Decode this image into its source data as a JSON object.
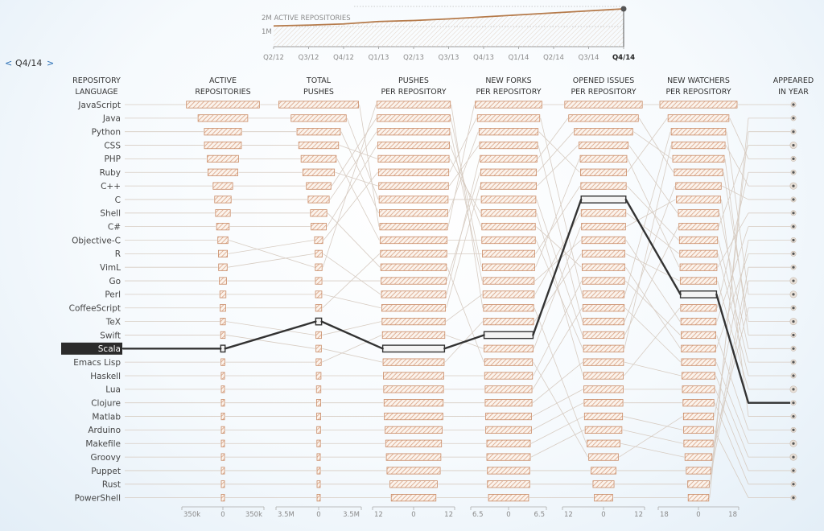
{
  "nav": {
    "quarter_label": "Q4/14",
    "prev_glyph": "<",
    "next_glyph": ">"
  },
  "timeline": {
    "title": "2M ACTIVE REPOSITORIES",
    "mid_label": "1M",
    "quarters": [
      "Q2/12",
      "Q3/12",
      "Q4/12",
      "Q1/13",
      "Q2/13",
      "Q3/13",
      "Q4/13",
      "Q1/14",
      "Q2/14",
      "Q3/14",
      "Q4/14"
    ],
    "selected_quarter": "Q4/14",
    "values_millions": [
      1.03,
      1.07,
      1.13,
      1.25,
      1.3,
      1.38,
      1.48,
      1.58,
      1.68,
      1.78,
      1.88
    ],
    "ylim_millions": [
      0,
      2
    ],
    "colors": {
      "line": "#b57a4a",
      "fill": "#f0e6dc",
      "dot": "#555555"
    }
  },
  "chart_data": {
    "type": "parallel-ranked-bars",
    "language_header": [
      "REPOSITORY",
      "LANGUAGE"
    ],
    "languages": [
      "JavaScript",
      "Java",
      "Python",
      "CSS",
      "PHP",
      "Ruby",
      "C++",
      "C",
      "Shell",
      "C#",
      "Objective-C",
      "R",
      "VimL",
      "Go",
      "Perl",
      "CoffeeScript",
      "TeX",
      "Swift",
      "Scala",
      "Emacs Lisp",
      "Haskell",
      "Lua",
      "Clojure",
      "Matlab",
      "Arduino",
      "Makefile",
      "Groovy",
      "Puppet",
      "Rust",
      "PowerShell"
    ],
    "selected_language": "Scala",
    "columns": [
      {
        "header": [
          "ACTIVE",
          "REPOSITORIES"
        ],
        "axis_ticks": [
          "350k",
          "0",
          "350k"
        ],
        "max": 350000,
        "values": [
          323938,
          220622,
          164852,
          164106,
          138771,
          132850,
          86955,
          73075,
          65670,
          56000,
          45000,
          40000,
          38000,
          32000,
          27000,
          25000,
          22000,
          20000,
          19500,
          17000,
          15000,
          13500,
          12500,
          11000,
          9500,
          8500,
          7500,
          6500,
          6000,
          5500
        ]
      },
      {
        "header": [
          "TOTAL",
          "PUSHES"
        ],
        "axis_ticks": [
          "3.5M",
          "0",
          "3.5M"
        ],
        "max": 3500000,
        "values": [
          3400000,
          2350000,
          1850000,
          1700000,
          1500000,
          1350000,
          1050000,
          900000,
          700000,
          650000,
          350000,
          300000,
          290000,
          280000,
          270000,
          260000,
          250000,
          240000,
          230000,
          220000,
          200000,
          190000,
          180000,
          170000,
          160000,
          150000,
          140000,
          130000,
          120000,
          110000
        ]
      },
      {
        "header": [
          "PUSHES",
          "PER REPOSITORY"
        ],
        "axis_ticks": [
          "12",
          "0",
          "12"
        ],
        "max": 12,
        "values": [
          11.2,
          11.1,
          11.0,
          10.9,
          10.8,
          10.7,
          10.6,
          10.5,
          10.4,
          10.3,
          10.2,
          10.1,
          10.0,
          9.9,
          9.8,
          9.7,
          9.6,
          9.5,
          9.4,
          9.3,
          9.2,
          9.1,
          9.0,
          8.9,
          8.7,
          8.5,
          8.3,
          8.1,
          7.2,
          6.8
        ]
      },
      {
        "header": [
          "NEW FORKS",
          "PER REPOSITORY"
        ],
        "axis_ticks": [
          "6.5",
          "0",
          "6.5"
        ],
        "max": 6.5,
        "values": [
          6.0,
          5.6,
          5.3,
          5.2,
          5.1,
          5.0,
          5.0,
          4.9,
          4.9,
          4.8,
          4.8,
          4.7,
          4.7,
          4.6,
          4.6,
          4.5,
          4.5,
          4.4,
          4.4,
          4.3,
          4.3,
          4.2,
          4.2,
          4.1,
          4.1,
          3.9,
          3.9,
          3.8,
          3.8,
          3.6
        ]
      },
      {
        "header": [
          "OPENED ISSUES",
          "PER REPOSITORY"
        ],
        "axis_ticks": [
          "12",
          "0",
          "12"
        ],
        "max": 12,
        "values": [
          11.8,
          10.6,
          8.9,
          7.5,
          7.1,
          7.0,
          6.9,
          6.8,
          6.8,
          6.7,
          6.6,
          6.5,
          6.5,
          6.4,
          6.3,
          6.3,
          6.2,
          6.2,
          6.1,
          6.1,
          6.0,
          6.0,
          5.9,
          5.8,
          5.6,
          5.0,
          4.5,
          3.8,
          3.2,
          2.8
        ]
      },
      {
        "header": [
          "NEW WATCHERS",
          "PER REPOSITORY"
        ],
        "axis_ticks": [
          "18",
          "0",
          "18"
        ],
        "max": 18,
        "values": [
          18.0,
          14.2,
          12.7,
          12.4,
          12.0,
          11.3,
          10.6,
          10.3,
          9.4,
          9.1,
          8.9,
          8.7,
          8.6,
          8.5,
          8.4,
          8.3,
          8.2,
          8.1,
          8.0,
          7.9,
          7.7,
          7.5,
          7.2,
          7.0,
          6.9,
          6.8,
          6.3,
          5.7,
          5.0,
          4.8
        ]
      }
    ],
    "appeared_column": {
      "header": [
        "APPEARED",
        "IN YEAR"
      ],
      "ranks": [
        0,
        3,
        4,
        5,
        6,
        7,
        8,
        9,
        10,
        11,
        12,
        14,
        16,
        17,
        18,
        19,
        20,
        21,
        22,
        23,
        24,
        25,
        26,
        27,
        28,
        29,
        15,
        13,
        2,
        1
      ]
    },
    "order_index": [
      [
        0,
        1,
        2,
        3,
        4,
        5,
        6,
        7,
        8,
        9,
        10,
        11,
        12,
        13,
        14,
        15,
        16,
        17,
        18,
        19,
        20,
        21,
        22,
        23,
        24,
        25,
        26,
        27,
        28,
        29
      ],
      [
        0,
        1,
        2,
        3,
        4,
        5,
        6,
        7,
        8,
        9,
        11,
        12,
        10,
        13,
        14,
        15,
        18,
        16,
        17,
        19,
        20,
        21,
        22,
        23,
        24,
        25,
        26,
        27,
        28,
        29
      ],
      [
        10,
        6,
        7,
        9,
        3,
        11,
        5,
        1,
        2,
        0,
        4,
        15,
        8,
        13,
        12,
        14,
        16,
        19,
        18,
        17,
        20,
        21,
        22,
        23,
        24,
        25,
        26,
        27,
        28,
        29
      ],
      [
        0,
        11,
        2,
        5,
        12,
        13,
        14,
        1,
        3,
        9,
        4,
        15,
        6,
        7,
        16,
        10,
        17,
        18,
        19,
        8,
        20,
        21,
        22,
        23,
        24,
        25,
        26,
        27,
        28,
        29
      ],
      [
        0,
        12,
        13,
        14,
        6,
        2,
        15,
        18,
        16,
        19,
        7,
        17,
        9,
        20,
        11,
        21,
        5,
        1,
        4,
        22,
        3,
        23,
        24,
        25,
        26,
        10,
        8,
        27,
        28,
        29
      ],
      [
        0,
        2,
        11,
        4,
        13,
        12,
        5,
        19,
        14,
        1,
        15,
        16,
        6,
        17,
        18,
        3,
        7,
        20,
        9,
        21,
        22,
        23,
        24,
        8,
        25,
        26,
        10,
        27,
        28,
        29
      ]
    ],
    "colors": {
      "bar_stroke": "#c98b66",
      "hatch": "#d9a183",
      "link": "#d7ccc2",
      "selected_line": "#333333",
      "selected_bg": "#2b2b2b",
      "dot": "#555555"
    }
  }
}
